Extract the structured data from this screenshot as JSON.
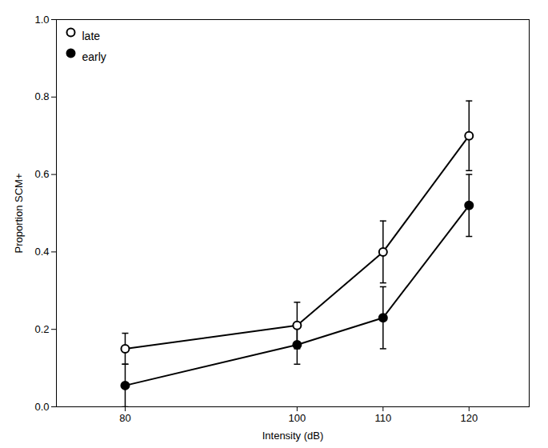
{
  "chart_data": {
    "type": "line",
    "xlabel": "Intensity (dB)",
    "ylabel": "Proportion SCM+",
    "x": [
      80,
      100,
      110,
      120
    ],
    "series": [
      {
        "name": "late",
        "color": "black",
        "marker": "open circle",
        "values": [
          0.15,
          0.21,
          0.4,
          0.7
        ],
        "yerr": [
          0.04,
          0.06,
          0.08,
          0.09
        ]
      },
      {
        "name": "early",
        "color": "black",
        "marker": "circle",
        "values": [
          0.055,
          0.16,
          0.23,
          0.52
        ],
        "yerr": [
          0.055,
          0.05,
          0.08,
          0.08
        ]
      }
    ],
    "xlim": [
      72,
      127
    ],
    "xticks": [
      80,
      100,
      110,
      120
    ],
    "ylim": [
      0,
      1
    ],
    "yticks": [
      {
        "value": 0,
        "label": "0.0"
      },
      0.2,
      0.4,
      0.6,
      0.8,
      {
        "value": 1,
        "label": "1.0"
      }
    ],
    "legend": "upper left",
    "grid": false
  }
}
